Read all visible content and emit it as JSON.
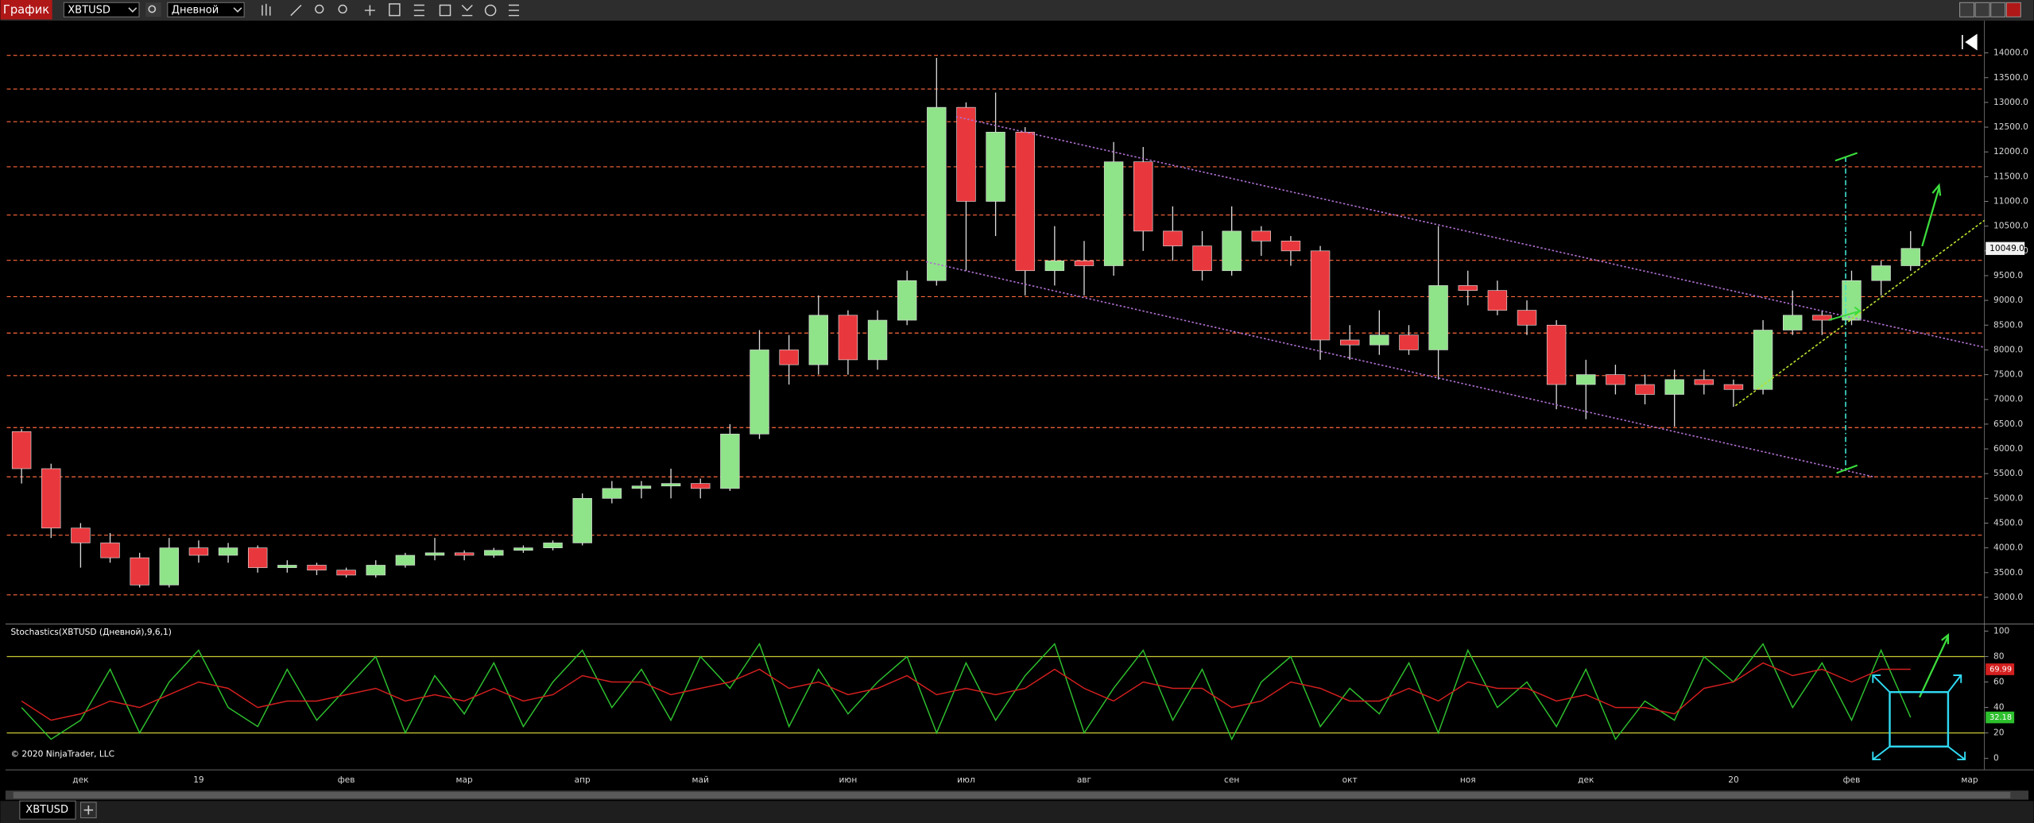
{
  "toolbar": {
    "window_title": "График",
    "instrument": "XBTUSD",
    "interval": "Дневной"
  },
  "tabs": [
    "XBTUSD"
  ],
  "chart_data": [
    {
      "type": "candlestick",
      "categories": [
        null,
        null,
        "дек",
        null,
        null,
        null,
        "19",
        null,
        null,
        null,
        null,
        "фев",
        null,
        null,
        null,
        "мар",
        null,
        null,
        null,
        "апр",
        null,
        null,
        null,
        "май",
        null,
        null,
        null,
        null,
        "июн",
        null,
        null,
        null,
        "июл",
        null,
        null,
        null,
        "авг",
        null,
        null,
        null,
        null,
        "сен",
        null,
        null,
        null,
        "окт",
        null,
        null,
        null,
        "ноя",
        null,
        null,
        null,
        "дек",
        null,
        null,
        null,
        null,
        "20",
        null,
        null,
        null,
        "фев",
        null,
        null,
        null,
        "мар"
      ],
      "open": [
        6350,
        5600,
        4400,
        4100,
        3800,
        3250,
        4000,
        3850,
        4000,
        3600,
        3650,
        3550,
        3450,
        3650,
        3850,
        3900,
        3850,
        3950,
        4000,
        4100,
        5000,
        5200,
        5250,
        5300,
        5200,
        6300,
        8000,
        7700,
        8700,
        7800,
        8600,
        9400,
        12900,
        11000,
        12400,
        9600,
        9800,
        9700,
        11800,
        10400,
        10100,
        9600,
        10400,
        10200,
        10000,
        8200,
        8100,
        8300,
        8000,
        9300,
        9200,
        8800,
        8500,
        7300,
        7500,
        7300,
        7100,
        7400,
        7300,
        7200,
        8400,
        8700,
        8600,
        9400,
        9700,
        null,
        null
      ],
      "high": [
        6400,
        5700,
        4500,
        4300,
        3900,
        4200,
        4150,
        4100,
        4050,
        3750,
        3700,
        3600,
        3750,
        3900,
        4200,
        3950,
        4000,
        4050,
        4150,
        5100,
        5350,
        5350,
        5600,
        5400,
        6500,
        8400,
        8300,
        9100,
        8800,
        8800,
        9600,
        13900,
        13000,
        13200,
        12500,
        10500,
        10200,
        12200,
        12100,
        10900,
        10400,
        10900,
        10500,
        10300,
        10100,
        8500,
        8800,
        8500,
        10500,
        9600,
        9400,
        9000,
        8600,
        7800,
        7700,
        7500,
        7600,
        7600,
        7400,
        8600,
        9200,
        8800,
        9600,
        9800,
        10400,
        null,
        null
      ],
      "low": [
        5300,
        4200,
        3600,
        3700,
        3200,
        3200,
        3700,
        3700,
        3500,
        3500,
        3450,
        3400,
        3400,
        3600,
        3750,
        3750,
        3800,
        3900,
        3950,
        4050,
        4900,
        5000,
        5000,
        5000,
        5150,
        6200,
        7300,
        7500,
        7500,
        7600,
        8500,
        9300,
        9600,
        10300,
        9100,
        9300,
        9100,
        9500,
        10000,
        9800,
        9400,
        9500,
        9900,
        9700,
        7800,
        7800,
        7900,
        7900,
        7400,
        8900,
        8700,
        8300,
        6800,
        6600,
        7100,
        6900,
        6450,
        7100,
        6850,
        7100,
        8300,
        8300,
        8500,
        9100,
        9600,
        null,
        null
      ],
      "close": [
        5600,
        4400,
        4100,
        3800,
        3250,
        4000,
        3850,
        4000,
        3600,
        3650,
        3550,
        3450,
        3650,
        3850,
        3900,
        3850,
        3950,
        4000,
        4100,
        5000,
        5200,
        5250,
        5300,
        5200,
        6300,
        8000,
        7700,
        8700,
        7800,
        8600,
        9400,
        12900,
        11000,
        12400,
        9600,
        9800,
        9700,
        11800,
        10400,
        10100,
        9600,
        10400,
        10200,
        10000,
        8200,
        8100,
        8300,
        8000,
        9300,
        9200,
        8800,
        8500,
        7300,
        7500,
        7300,
        7100,
        7400,
        7300,
        7200,
        8400,
        8700,
        8600,
        9400,
        9700,
        10050,
        null,
        null
      ],
      "up_color": "#8fe388",
      "down_color": "#e8383d",
      "ylim": [
        2500,
        14650
      ],
      "yticks": [
        {
          "value": 3000,
          "label": "3000.0"
        },
        {
          "value": 3500,
          "label": "3500.0"
        },
        {
          "value": 4000,
          "label": "4000.0"
        },
        {
          "value": 4500,
          "label": "4500.0"
        },
        {
          "value": 5000,
          "label": "5000.0"
        },
        {
          "value": 5500,
          "label": "5500.0"
        },
        {
          "value": 6000,
          "label": "6000.0"
        },
        {
          "value": 6500,
          "label": "6500.0"
        },
        {
          "value": 7000,
          "label": "7000.0"
        },
        {
          "value": 7500,
          "label": "7500.0"
        },
        {
          "value": 8000,
          "label": "8000.0"
        },
        {
          "value": 8500,
          "label": "8500.0"
        },
        {
          "value": 9000,
          "label": "9000.0"
        },
        {
          "value": 9500,
          "label": "9500.0"
        },
        {
          "value": 10000,
          "label": "10000.0"
        },
        {
          "value": 10500,
          "label": "10500.0"
        },
        {
          "value": 11000,
          "label": "11000.0"
        },
        {
          "value": 11500,
          "label": "11500.0"
        },
        {
          "value": 12000,
          "label": "12000.0"
        },
        {
          "value": 12500,
          "label": "12500.0"
        },
        {
          "value": 13000,
          "label": "13000.0"
        },
        {
          "value": 13500,
          "label": "13500.0"
        },
        {
          "value": 14000,
          "label": "14000.0"
        }
      ],
      "levels": [
        13950,
        13270,
        12610,
        11700,
        10725,
        9810,
        9075,
        8340,
        7480,
        6430,
        5435,
        4257,
        3050
      ],
      "level_color": "#ff6a3d",
      "last_price": {
        "value": 10049,
        "label": "10049.0"
      }
    },
    {
      "type": "line",
      "title": "Stochastics(XBTUSD (Дневной),9,6,1)",
      "annotation": "© 2020 NinjaTrader, LLC",
      "series": [
        {
          "color": "#2ec02e",
          "last_label": "32.18",
          "values": [
            40,
            15,
            30,
            70,
            20,
            60,
            85,
            40,
            25,
            70,
            30,
            55,
            80,
            20,
            65,
            35,
            75,
            25,
            60,
            85,
            40,
            70,
            30,
            80,
            55,
            90,
            25,
            70,
            35,
            60,
            80,
            20,
            75,
            30,
            65,
            90,
            20,
            55,
            85,
            30,
            70,
            15,
            60,
            80,
            25,
            55,
            35,
            75,
            20,
            85,
            40,
            60,
            25,
            70,
            15,
            45,
            30,
            80,
            60,
            90,
            40,
            75,
            30,
            85,
            32.18,
            null,
            null
          ]
        },
        {
          "color": "#d41f1f",
          "last_label": "69.99",
          "values": [
            45,
            30,
            35,
            45,
            40,
            50,
            60,
            55,
            40,
            45,
            45,
            50,
            55,
            45,
            50,
            45,
            55,
            45,
            50,
            65,
            60,
            60,
            50,
            55,
            60,
            70,
            55,
            60,
            50,
            55,
            65,
            50,
            55,
            50,
            55,
            70,
            55,
            45,
            60,
            55,
            55,
            40,
            45,
            60,
            55,
            45,
            45,
            55,
            45,
            60,
            55,
            55,
            45,
            50,
            40,
            40,
            35,
            55,
            60,
            75,
            65,
            70,
            60,
            70,
            69.99,
            null,
            null
          ]
        }
      ],
      "ylim": [
        -8,
        104
      ],
      "yticks": [
        0,
        20,
        40,
        60,
        80,
        100
      ],
      "levels": [
        20,
        80
      ],
      "level_color": "#c8c832"
    }
  ]
}
